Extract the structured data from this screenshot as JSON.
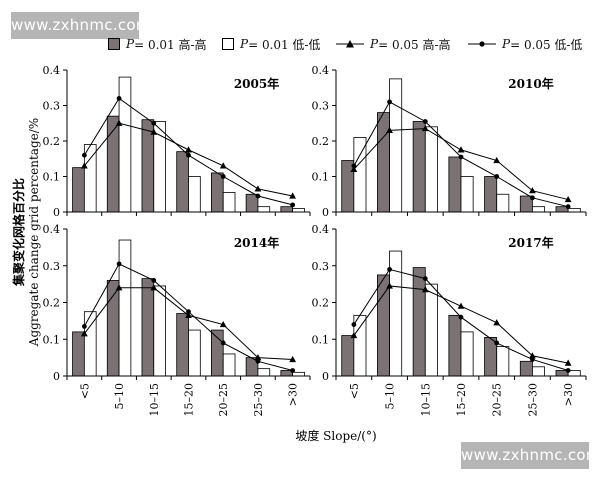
{
  "watermark": {
    "top": "www.zxhnmc.com",
    "bottom": "www.zxhnmc.com"
  },
  "legend": {
    "items": [
      {
        "symbol": "bar-filled",
        "italic": "P",
        "label": " = 0.01 高-高"
      },
      {
        "symbol": "bar-open",
        "italic": "P",
        "label": " = 0.01 低-低"
      },
      {
        "symbol": "line-triangle",
        "italic": "P",
        "label": " = 0.05 高-高"
      },
      {
        "symbol": "line-dot",
        "italic": "P",
        "label": " = 0.05 低-低"
      }
    ]
  },
  "ylabel": {
    "cn": "集聚变化网格百分比",
    "en": "Aggregate change grid percentage/%"
  },
  "xlabel": "坡度 Slope/(°)",
  "colors": {
    "filled_bar": "#7a7273",
    "open_bar": "#ffffff",
    "stroke": "#000000"
  },
  "chart_data": [
    {
      "type": "bar",
      "title": "2005年",
      "categories": [
        "<5",
        "5–10",
        "10–15",
        "15–20",
        "20–25",
        "25–30",
        ">30"
      ],
      "ylim": [
        0,
        0.4
      ],
      "yticks": [
        "0",
        "0.1",
        "0.2",
        "0.3",
        "0.4"
      ],
      "series": [
        {
          "name": "P = 0.01 高-高",
          "kind": "bar-filled",
          "values": [
            0.125,
            0.27,
            0.26,
            0.17,
            0.11,
            0.05,
            0.015
          ]
        },
        {
          "name": "P = 0.01 低-低",
          "kind": "bar-open",
          "values": [
            0.19,
            0.38,
            0.255,
            0.1,
            0.055,
            0.015,
            0.01
          ]
        },
        {
          "name": "P = 0.05 高-高",
          "kind": "line-triangle",
          "values": [
            0.13,
            0.25,
            0.225,
            0.175,
            0.13,
            0.065,
            0.045
          ]
        },
        {
          "name": "P = 0.05 低-低",
          "kind": "line-dot",
          "values": [
            0.16,
            0.32,
            0.25,
            0.16,
            0.1,
            0.045,
            0.02
          ]
        }
      ]
    },
    {
      "type": "bar",
      "title": "2010年",
      "categories": [
        "<5",
        "5–10",
        "10–15",
        "15–20",
        "20–25",
        "25–30",
        ">30"
      ],
      "ylim": [
        0,
        0.4
      ],
      "yticks": [
        "0",
        "0.1",
        "0.2",
        "0.3",
        "0.4"
      ],
      "series": [
        {
          "name": "P = 0.01 高-高",
          "kind": "bar-filled",
          "values": [
            0.145,
            0.28,
            0.255,
            0.155,
            0.1,
            0.045,
            0.015
          ]
        },
        {
          "name": "P = 0.01 低-低",
          "kind": "bar-open",
          "values": [
            0.21,
            0.375,
            0.24,
            0.1,
            0.05,
            0.015,
            0.01
          ]
        },
        {
          "name": "P = 0.05 高-高",
          "kind": "line-triangle",
          "values": [
            0.12,
            0.23,
            0.235,
            0.175,
            0.145,
            0.06,
            0.035
          ]
        },
        {
          "name": "P = 0.05 低-低",
          "kind": "line-dot",
          "values": [
            0.13,
            0.31,
            0.255,
            0.155,
            0.1,
            0.04,
            0.015
          ]
        }
      ]
    },
    {
      "type": "bar",
      "title": "2014年",
      "categories": [
        "<5",
        "5–10",
        "10–15",
        "15–20",
        "20–25",
        "25–30",
        ">30"
      ],
      "ylim": [
        0,
        0.4
      ],
      "yticks": [
        "0",
        "0.1",
        "0.2",
        "0.3",
        "0.4"
      ],
      "series": [
        {
          "name": "P = 0.01 高-高",
          "kind": "bar-filled",
          "values": [
            0.12,
            0.26,
            0.265,
            0.17,
            0.125,
            0.05,
            0.015
          ]
        },
        {
          "name": "P = 0.01 低-低",
          "kind": "bar-open",
          "values": [
            0.175,
            0.37,
            0.245,
            0.125,
            0.06,
            0.02,
            0.01
          ]
        },
        {
          "name": "P = 0.05 高-高",
          "kind": "line-triangle",
          "values": [
            0.115,
            0.24,
            0.24,
            0.165,
            0.14,
            0.05,
            0.045
          ]
        },
        {
          "name": "P = 0.05 低-低",
          "kind": "line-dot",
          "values": [
            0.135,
            0.305,
            0.26,
            0.175,
            0.09,
            0.04,
            0.015
          ]
        }
      ]
    },
    {
      "type": "bar",
      "title": "2017年",
      "categories": [
        "<5",
        "5–10",
        "10–15",
        "15–20",
        "20–25",
        "25–30",
        ">30"
      ],
      "ylim": [
        0,
        0.4
      ],
      "yticks": [
        "0",
        "0.1",
        "0.2",
        "0.3",
        "0.4"
      ],
      "series": [
        {
          "name": "P = 0.01 高-高",
          "kind": "bar-filled",
          "values": [
            0.11,
            0.275,
            0.295,
            0.165,
            0.105,
            0.04,
            0.015
          ]
        },
        {
          "name": "P = 0.01 低-低",
          "kind": "bar-open",
          "values": [
            0.165,
            0.34,
            0.25,
            0.12,
            0.08,
            0.025,
            0.015
          ]
        },
        {
          "name": "P = 0.05 高-高",
          "kind": "line-triangle",
          "values": [
            0.11,
            0.245,
            0.235,
            0.19,
            0.145,
            0.055,
            0.035
          ]
        },
        {
          "name": "P = 0.05 低-低",
          "kind": "line-dot",
          "values": [
            0.14,
            0.29,
            0.265,
            0.16,
            0.09,
            0.045,
            0.015
          ]
        }
      ]
    }
  ]
}
